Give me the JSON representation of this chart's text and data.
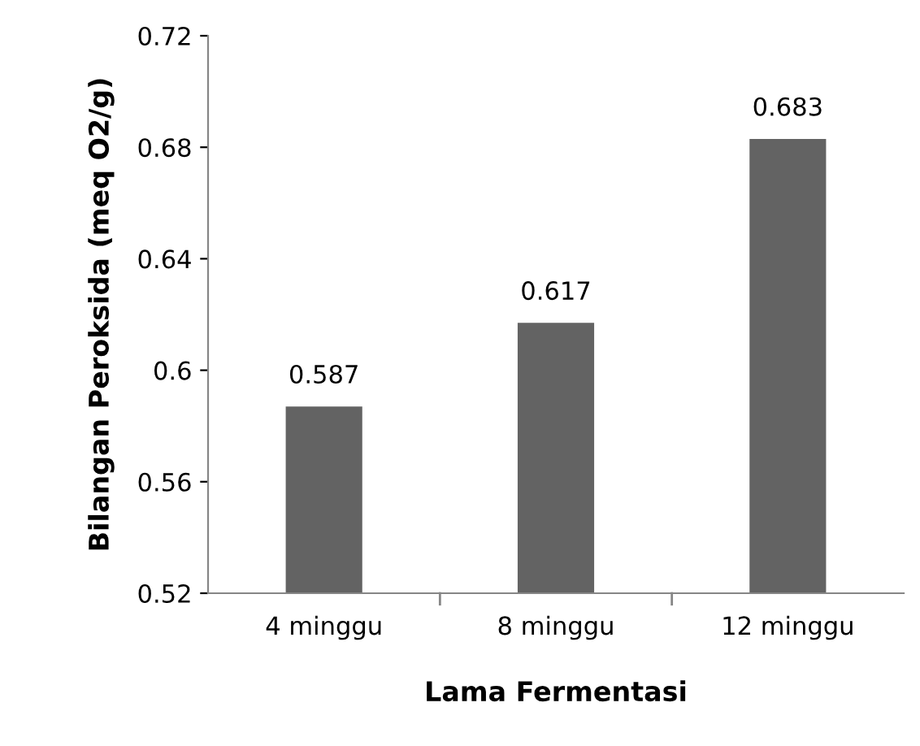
{
  "chart_data": {
    "type": "bar",
    "xlabel": "Lama Fermentasi",
    "ylabel": "Bilangan Peroksida (meq O2/g)",
    "categories": [
      "4 minggu",
      "8 minggu",
      "12 minggu"
    ],
    "values": [
      0.587,
      0.617,
      0.683
    ],
    "color": "#636363",
    "ylim": [
      0.52,
      0.72
    ],
    "yticks": [
      0.52,
      0.56,
      0.6,
      0.64,
      0.68,
      0.72
    ],
    "data_labels": true
  }
}
